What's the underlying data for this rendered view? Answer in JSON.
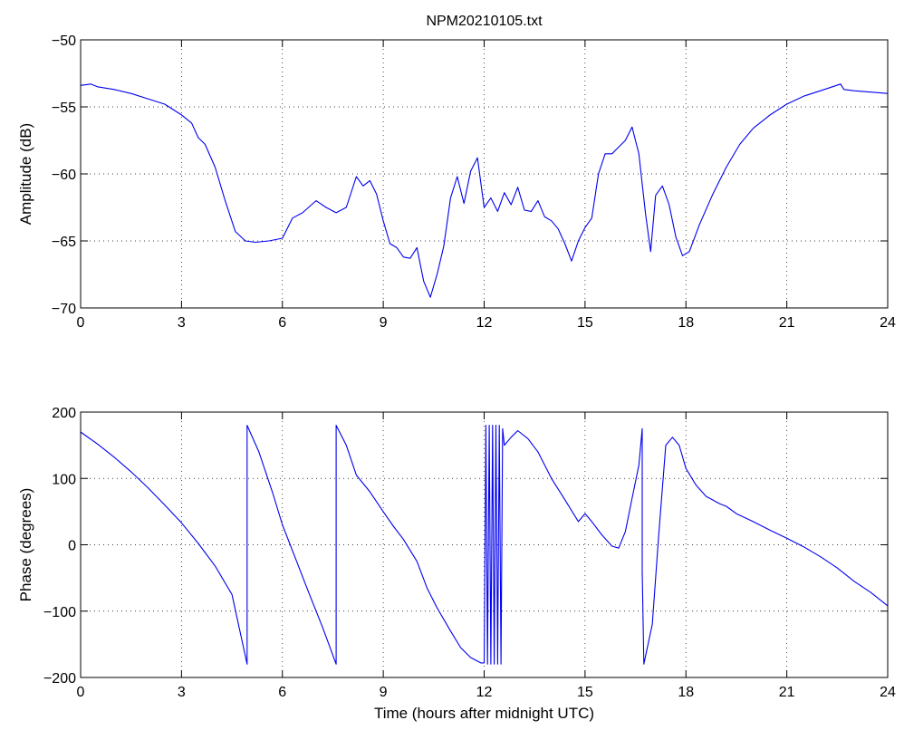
{
  "chart_data": [
    {
      "type": "line",
      "title": "NPM20210105.txt",
      "xlabel": "",
      "ylabel": "Amplitude (dB)",
      "xlim": [
        0,
        24
      ],
      "ylim": [
        -70,
        -50
      ],
      "x_ticks": [
        0,
        3,
        6,
        9,
        12,
        15,
        18,
        21,
        24
      ],
      "y_ticks": [
        -70,
        -65,
        -60,
        -55,
        -50
      ],
      "x_tick_labels": [
        "0",
        "3",
        "6",
        "9",
        "12",
        "15",
        "18",
        "21",
        "24"
      ],
      "y_tick_labels": [
        "−70",
        "−65",
        "−60",
        "−55",
        "−50"
      ],
      "grid": true,
      "series": [
        {
          "color": "#0000ee",
          "x": [
            0,
            0.3,
            0.5,
            1.0,
            1.5,
            2.0,
            2.5,
            3.0,
            3.3,
            3.5,
            3.7,
            4.0,
            4.3,
            4.6,
            4.9,
            5.2,
            5.6,
            6.0,
            6.3,
            6.6,
            7.0,
            7.3,
            7.6,
            7.9,
            8.2,
            8.4,
            8.6,
            8.8,
            9.0,
            9.2,
            9.4,
            9.6,
            9.8,
            10.0,
            10.2,
            10.4,
            10.6,
            10.8,
            11.0,
            11.2,
            11.4,
            11.6,
            11.8,
            12.0,
            12.2,
            12.4,
            12.6,
            12.8,
            13.0,
            13.2,
            13.4,
            13.6,
            13.8,
            14.0,
            14.2,
            14.4,
            14.6,
            14.8,
            15.0,
            15.2,
            15.4,
            15.6,
            15.8,
            16.0,
            16.2,
            16.4,
            16.6,
            16.8,
            16.95,
            17.1,
            17.3,
            17.5,
            17.7,
            17.9,
            18.1,
            18.4,
            18.8,
            19.2,
            19.6,
            20.0,
            20.5,
            21.0,
            21.5,
            22.0,
            22.6,
            22.7,
            23.0,
            23.5,
            24.0
          ],
          "y": [
            -53.4,
            -53.3,
            -53.5,
            -53.7,
            -54.0,
            -54.4,
            -54.8,
            -55.6,
            -56.2,
            -57.3,
            -57.8,
            -59.5,
            -62.0,
            -64.3,
            -65.0,
            -65.1,
            -65.0,
            -64.8,
            -63.3,
            -62.9,
            -62.0,
            -62.5,
            -62.9,
            -62.5,
            -60.2,
            -60.9,
            -60.5,
            -61.5,
            -63.5,
            -65.2,
            -65.5,
            -66.2,
            -66.3,
            -65.5,
            -68.0,
            -69.2,
            -67.5,
            -65.4,
            -61.8,
            -60.2,
            -62.2,
            -59.8,
            -58.8,
            -62.5,
            -61.8,
            -62.8,
            -61.4,
            -62.3,
            -61.0,
            -62.7,
            -62.8,
            -62.0,
            -63.2,
            -63.5,
            -64.1,
            -65.2,
            -66.5,
            -65.0,
            -64.0,
            -63.3,
            -60.0,
            -58.5,
            -58.5,
            -58.0,
            -57.5,
            -56.5,
            -58.5,
            -63.0,
            -65.8,
            -61.6,
            -60.9,
            -62.3,
            -64.7,
            -66.1,
            -65.8,
            -63.8,
            -61.5,
            -59.5,
            -57.8,
            -56.6,
            -55.6,
            -54.8,
            -54.2,
            -53.8,
            -53.3,
            -53.7,
            -53.8,
            -53.9,
            -54.0
          ]
        }
      ]
    },
    {
      "type": "line",
      "title": "",
      "xlabel": "Time (hours after midnight UTC)",
      "ylabel": "Phase (degrees)",
      "xlim": [
        0,
        24
      ],
      "ylim": [
        -200,
        200
      ],
      "x_ticks": [
        0,
        3,
        6,
        9,
        12,
        15,
        18,
        21,
        24
      ],
      "y_ticks": [
        -200,
        -100,
        0,
        100,
        200
      ],
      "x_tick_labels": [
        "0",
        "3",
        "6",
        "9",
        "12",
        "15",
        "18",
        "21",
        "24"
      ],
      "y_tick_labels": [
        "−200",
        "−100",
        "0",
        "100",
        "200"
      ],
      "grid": true,
      "series": [
        {
          "color": "#0000ee",
          "x": [
            0,
            0.5,
            1.0,
            1.5,
            2.0,
            2.5,
            3.0,
            3.5,
            4.0,
            4.5,
            4.95,
            4.95,
            5.3,
            5.7,
            6.0,
            6.4,
            6.8,
            7.2,
            7.6,
            7.6,
            7.9,
            8.2,
            8.6,
            9.0,
            9.3,
            9.6,
            10.0,
            10.3,
            10.6,
            11.0,
            11.3,
            11.6,
            11.9,
            12.0,
            12.05,
            12.1,
            12.15,
            12.2,
            12.25,
            12.3,
            12.35,
            12.4,
            12.45,
            12.5,
            12.55,
            12.6,
            12.8,
            13.0,
            13.3,
            13.6,
            14.0,
            14.4,
            14.8,
            15.0,
            15.2,
            15.5,
            15.8,
            16.0,
            16.2,
            16.4,
            16.6,
            16.7,
            16.7,
            16.75,
            17.0,
            17.2,
            17.4,
            17.6,
            17.8,
            18.0,
            18.3,
            18.6,
            19.0,
            19.2,
            19.5,
            20.0,
            20.5,
            21.0,
            21.5,
            22.0,
            22.5,
            23.0,
            23.5,
            24.0
          ],
          "y": [
            170,
            152,
            132,
            110,
            86,
            60,
            33,
            2,
            -32,
            -75,
            -180,
            180,
            140,
            80,
            30,
            -22,
            -74,
            -125,
            -180,
            180,
            150,
            105,
            80,
            50,
            28,
            8,
            -25,
            -65,
            -95,
            -130,
            -155,
            -170,
            -178,
            -178,
            180,
            -180,
            180,
            -180,
            180,
            -180,
            180,
            -180,
            180,
            -180,
            175,
            150,
            162,
            172,
            160,
            140,
            100,
            68,
            35,
            47,
            35,
            15,
            -2,
            -5,
            20,
            70,
            120,
            175,
            -40,
            -180,
            -120,
            20,
            150,
            162,
            150,
            115,
            90,
            73,
            62,
            58,
            47,
            35,
            22,
            10,
            -3,
            -18,
            -35,
            -55,
            -72,
            -92
          ]
        }
      ]
    }
  ]
}
